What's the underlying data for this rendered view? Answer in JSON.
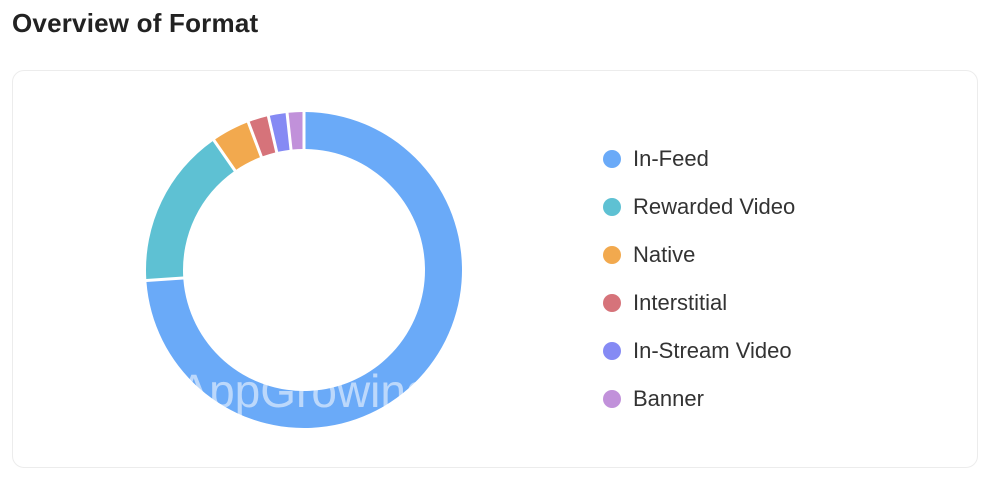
{
  "header": {
    "title": "Overview of Format"
  },
  "watermark": {
    "text": "AppGrowing"
  },
  "chart_data": {
    "type": "pie",
    "categories": [
      "In-Feed",
      "Rewarded Video",
      "Native",
      "Interstitial",
      "In-Stream Video",
      "Banner"
    ],
    "values": [
      73.5,
      16.3,
      3.9,
      2.1,
      1.9,
      1.7
    ],
    "colors": [
      "#6aaaf8",
      "#5ec1d3",
      "#f2a94e",
      "#d6737a",
      "#858af4",
      "#c191da"
    ],
    "donut": true,
    "legend": "right"
  }
}
